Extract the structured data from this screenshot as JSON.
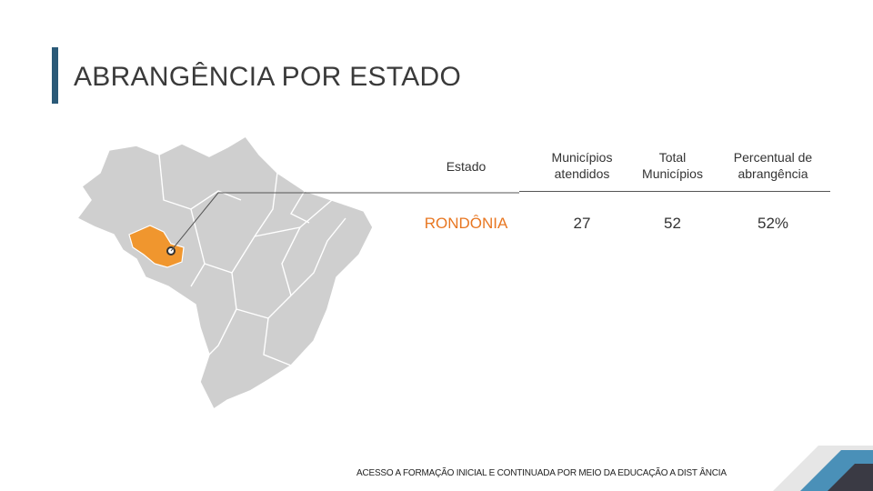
{
  "page": {
    "title": "ABRANGÊNCIA POR ESTADO",
    "footer": "ACESSO A FORMAÇÃO INICIAL E CONTINUADA POR MEIO DA EDUCAÇÃO A DIST ÂNCIA"
  },
  "table": {
    "headers": [
      "Estado",
      "Municípios\natendidos",
      "Total\nMunicípios",
      "Percentual de\nabrangência"
    ],
    "row": {
      "estado": "RONDÔNIA",
      "municipios_atendidos": "27",
      "total_municipios": "52",
      "percentual": "52%"
    }
  },
  "colors": {
    "accent": "#2b5a78",
    "highlight_state": "#f0962e",
    "map_fill": "#cfcfcf"
  },
  "icons": [
    "brazil-map",
    "location-marker-icon"
  ]
}
